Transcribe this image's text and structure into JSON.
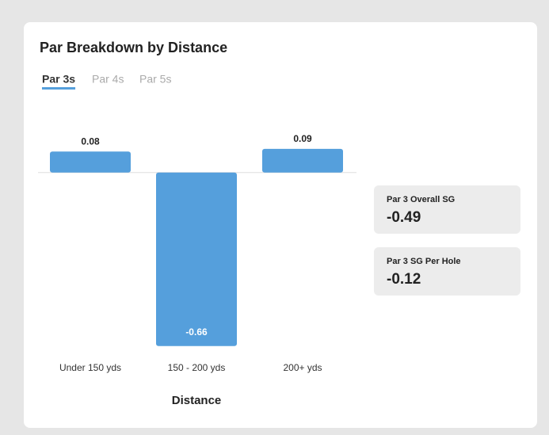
{
  "title": "Par Breakdown by Distance",
  "tabs": [
    "Par 3s",
    "Par 4s",
    "Par 5s"
  ],
  "active_tab": 0,
  "chart_data": {
    "type": "bar",
    "categories": [
      "Under 150 yds",
      "150 - 200 yds",
      "200+ yds"
    ],
    "values": [
      0.08,
      -0.66,
      0.09
    ],
    "x_label": "Distance",
    "color": "#559fdc",
    "ylim": [
      -0.7,
      0.15
    ]
  },
  "stats": [
    {
      "label": "Par 3 Overall SG",
      "value": -0.49
    },
    {
      "label": "Par 3 SG Per Hole",
      "value": -0.12
    }
  ]
}
